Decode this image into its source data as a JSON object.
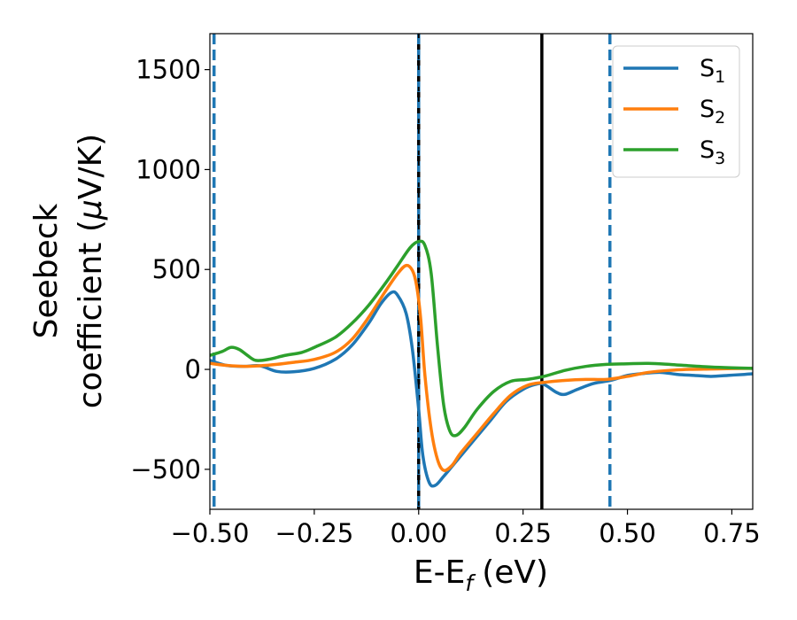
{
  "chart_data": {
    "type": "line",
    "xlabel": "E-E",
    "xlabel_sub": "f",
    "xlabel_unit": "(eV)",
    "ylabel_line1": "Seebeck",
    "ylabel_line2": "coefficient  (",
    "ylabel_mu": "μ",
    "ylabel_unit": "V/K)",
    "xlim": [
      -0.5,
      0.8
    ],
    "ylim": [
      -700,
      1680
    ],
    "x_ticks": [
      -0.5,
      -0.25,
      0.0,
      0.25,
      0.5,
      0.75
    ],
    "x_tick_labels": [
      "−0.50",
      "−0.25",
      "0.00",
      "0.25",
      "0.50",
      "0.75"
    ],
    "y_ticks": [
      -500,
      0,
      500,
      1000,
      1500
    ],
    "y_tick_labels": [
      "−500",
      "0",
      "500",
      "1000",
      "1500"
    ],
    "legend_position": "top-right",
    "series": [
      {
        "name": "S",
        "sub": "1",
        "color": "#1f77b4",
        "points": [
          [
            -0.5,
            45
          ],
          [
            -0.46,
            20
          ],
          [
            -0.42,
            15
          ],
          [
            -0.38,
            18
          ],
          [
            -0.34,
            -10
          ],
          [
            -0.3,
            -12
          ],
          [
            -0.25,
            5
          ],
          [
            -0.2,
            50
          ],
          [
            -0.16,
            120
          ],
          [
            -0.12,
            230
          ],
          [
            -0.09,
            330
          ],
          [
            -0.065,
            385
          ],
          [
            -0.05,
            370
          ],
          [
            -0.03,
            280
          ],
          [
            -0.015,
            100
          ],
          [
            0.0,
            -200
          ],
          [
            0.01,
            -430
          ],
          [
            0.025,
            -565
          ],
          [
            0.04,
            -580
          ],
          [
            0.06,
            -535
          ],
          [
            0.09,
            -460
          ],
          [
            0.13,
            -360
          ],
          [
            0.17,
            -260
          ],
          [
            0.21,
            -160
          ],
          [
            0.25,
            -100
          ],
          [
            0.28,
            -75
          ],
          [
            0.3,
            -75
          ],
          [
            0.33,
            -115
          ],
          [
            0.35,
            -125
          ],
          [
            0.38,
            -100
          ],
          [
            0.42,
            -70
          ],
          [
            0.46,
            -55
          ],
          [
            0.5,
            -30
          ],
          [
            0.54,
            -20
          ],
          [
            0.58,
            -15
          ],
          [
            0.62,
            -25
          ],
          [
            0.66,
            -30
          ],
          [
            0.7,
            -35
          ],
          [
            0.74,
            -30
          ],
          [
            0.78,
            -25
          ],
          [
            0.8,
            -22
          ]
        ]
      },
      {
        "name": "S",
        "sub": "2",
        "color": "#ff7f0e",
        "points": [
          [
            -0.5,
            30
          ],
          [
            -0.46,
            20
          ],
          [
            -0.42,
            15
          ],
          [
            -0.38,
            18
          ],
          [
            -0.34,
            25
          ],
          [
            -0.3,
            35
          ],
          [
            -0.25,
            50
          ],
          [
            -0.2,
            85
          ],
          [
            -0.16,
            150
          ],
          [
            -0.12,
            260
          ],
          [
            -0.08,
            390
          ],
          [
            -0.05,
            480
          ],
          [
            -0.03,
            520
          ],
          [
            -0.015,
            495
          ],
          [
            -0.005,
            420
          ],
          [
            0.005,
            250
          ],
          [
            0.015,
            -30
          ],
          [
            0.03,
            -300
          ],
          [
            0.045,
            -450
          ],
          [
            0.06,
            -505
          ],
          [
            0.08,
            -480
          ],
          [
            0.1,
            -420
          ],
          [
            0.14,
            -320
          ],
          [
            0.18,
            -220
          ],
          [
            0.22,
            -130
          ],
          [
            0.26,
            -80
          ],
          [
            0.3,
            -65
          ],
          [
            0.35,
            -55
          ],
          [
            0.4,
            -50
          ],
          [
            0.45,
            -50
          ],
          [
            0.5,
            -35
          ],
          [
            0.55,
            -15
          ],
          [
            0.6,
            -5
          ],
          [
            0.65,
            0
          ],
          [
            0.7,
            2
          ],
          [
            0.75,
            4
          ],
          [
            0.8,
            5
          ]
        ]
      },
      {
        "name": "S",
        "sub": "3",
        "color": "#2ca02c",
        "points": [
          [
            -0.5,
            70
          ],
          [
            -0.47,
            90
          ],
          [
            -0.45,
            110
          ],
          [
            -0.43,
            100
          ],
          [
            -0.41,
            70
          ],
          [
            -0.39,
            45
          ],
          [
            -0.36,
            50
          ],
          [
            -0.32,
            70
          ],
          [
            -0.28,
            85
          ],
          [
            -0.25,
            110
          ],
          [
            -0.2,
            160
          ],
          [
            -0.16,
            230
          ],
          [
            -0.12,
            320
          ],
          [
            -0.08,
            430
          ],
          [
            -0.05,
            520
          ],
          [
            -0.02,
            610
          ],
          [
            0.0,
            640
          ],
          [
            0.015,
            620
          ],
          [
            0.03,
            480
          ],
          [
            0.045,
            120
          ],
          [
            0.06,
            -180
          ],
          [
            0.075,
            -310
          ],
          [
            0.09,
            -330
          ],
          [
            0.11,
            -290
          ],
          [
            0.14,
            -200
          ],
          [
            0.18,
            -110
          ],
          [
            0.22,
            -60
          ],
          [
            0.26,
            -50
          ],
          [
            0.3,
            -35
          ],
          [
            0.35,
            -5
          ],
          [
            0.4,
            15
          ],
          [
            0.45,
            25
          ],
          [
            0.5,
            28
          ],
          [
            0.55,
            30
          ],
          [
            0.6,
            25
          ],
          [
            0.65,
            18
          ],
          [
            0.7,
            12
          ],
          [
            0.75,
            8
          ],
          [
            0.8,
            5
          ]
        ]
      }
    ],
    "vlines": [
      {
        "x": -0.49,
        "style": "dashed",
        "color": "#1f77b4"
      },
      {
        "x": 0.0,
        "style": "solid",
        "color": "#000000"
      },
      {
        "x": 0.0,
        "style": "dashed",
        "color": "#1f77b4"
      },
      {
        "x": 0.0,
        "style": "dashed-black",
        "color": "#000000"
      },
      {
        "x": 0.295,
        "style": "solid",
        "color": "#000000"
      },
      {
        "x": 0.458,
        "style": "dashed",
        "color": "#1f77b4"
      }
    ]
  }
}
